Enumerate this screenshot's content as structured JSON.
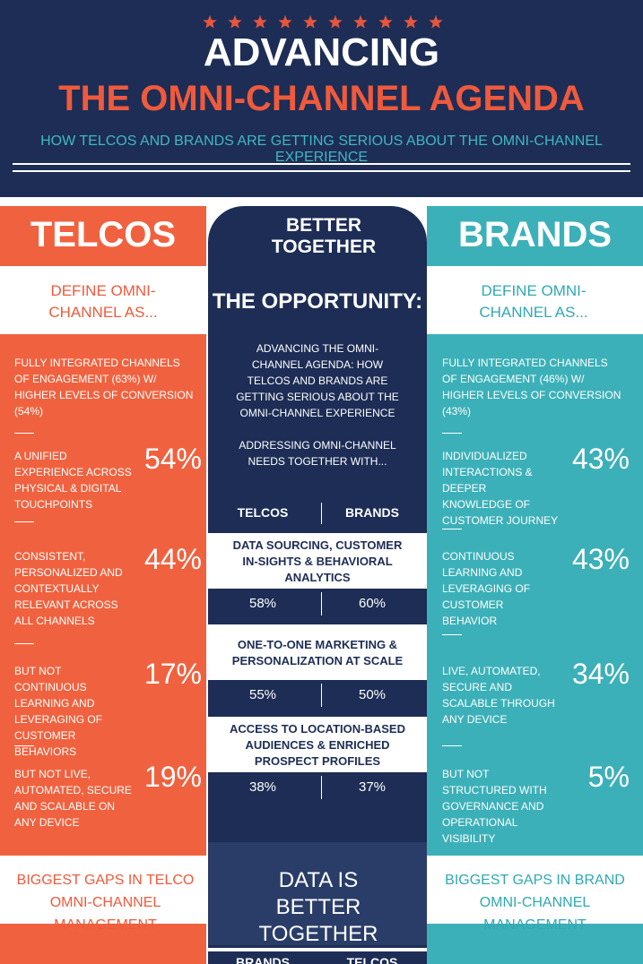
{
  "header": {
    "title": "ADVANCING",
    "subtitle": "THE OMNI-CHANNEL AGENDA",
    "tagline": "HOW TELCOS AND BRANDS ARE GETTING SERIOUS ABOUT THE OMNI-CHANNEL EXPERIENCE"
  },
  "telcos": {
    "heading": "TELCOS",
    "define": "DEFINE OMNI-CHANNEL AS...",
    "intro": "FULLY INTEGRATED CHANNELS OF ENGAGEMENT (63%) W/ HIGHER LEVELS OF CONVERSION (54%)",
    "items": [
      {
        "text": "A UNIFIED EXPERIENCE ACROSS PHYSICAL & DIGITAL TOUCHPOINTS",
        "value": "54%"
      },
      {
        "text": "CONSISTENT, PERSONALIZED AND CONTEXTUALLY RELEVANT ACROSS ALL CHANNELS",
        "value": "44%"
      },
      {
        "text": "BUT NOT CONTINUOUS LEARNING AND LEVERAGING OF CUSTOMER BEHAVIORS",
        "value": "17%"
      },
      {
        "text": "BUT NOT LIVE, AUTOMATED, SECURE AND SCALABLE ON ANY DEVICE",
        "value": "19%"
      }
    ],
    "gaps": "BIGGEST GAPS IN TELCO OMNI-CHANNEL MANAGEMENT"
  },
  "center": {
    "heading": "BETTER TOGETHER",
    "opportunity": "THE  OPPORTUNITY:",
    "paragraphs": [
      "ADVANCING THE OMNI-CHANNEL AGENDA: HOW TELCOS AND BRANDS ARE GETTING SERIOUS ABOUT THE OMNI-CHANNEL EXPERIENCE",
      "ADDRESSING OMNI-CHANNEL NEEDS TOGETHER WITH..."
    ],
    "table": {
      "columns": [
        "TELCOS",
        "BRANDS"
      ],
      "rows": [
        {
          "label": "DATA SOURCING, CUSTOMER IN-SIGHTS & BEHAVIORAL ANALYTICS",
          "values": [
            "58%",
            "60%"
          ]
        },
        {
          "label": "ONE-TO-ONE MARKETING & PERSONALIZATION AT SCALE",
          "values": [
            "55%",
            "50%"
          ]
        },
        {
          "label": "ACCESS TO LOCATION-BASED AUDIENCES & ENRICHED PROSPECT PROFILES",
          "values": [
            "38%",
            "37%"
          ]
        }
      ]
    },
    "footer": "DATA IS BETTER TOGETHER",
    "bottom_columns": [
      "BRANDS",
      "TELCOS"
    ]
  },
  "brands": {
    "heading": "BRANDS",
    "define": "DEFINE OMNI-CHANNEL AS...",
    "intro": "FULLY INTEGRATED CHANNELS OF ENGAGEMENT (46%) W/ HIGHER LEVELS OF CONVERSION (43%)",
    "items": [
      {
        "text": "INDIVIDUALIZED INTERACTIONS & DEEPER KNOWLEDGE OF CUSTOMER JOURNEY",
        "value": "43%"
      },
      {
        "text": "CONTINUOUS LEARNING AND LEVERAGING OF CUSTOMER BEHAVIOR",
        "value": "43%"
      },
      {
        "text": "LIVE, AUTOMATED, SECURE AND SCALABLE THROUGH ANY DEVICE",
        "value": "34%"
      },
      {
        "text": "BUT NOT STRUCTURED WITH GOVERNANCE AND OPERATIONAL VISIBILITY",
        "value": "5%"
      }
    ],
    "gaps": "BIGGEST GAPS IN BRAND OMNI-CHANNEL MANAGEMENT"
  }
}
